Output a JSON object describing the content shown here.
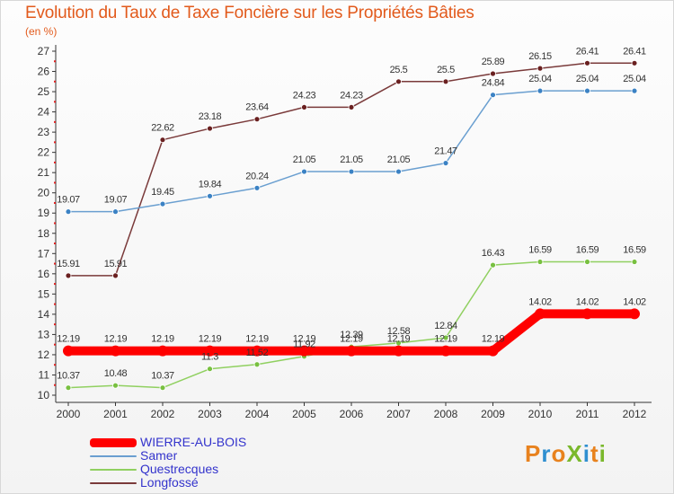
{
  "title": "Evolution du Taux de Taxe Foncière sur les Propriétés Bâties",
  "subtitle": "(en %)",
  "logo_text": "ProXiti",
  "chart_data": {
    "type": "line",
    "x": [
      "2000",
      "2001",
      "2002",
      "2003",
      "2004",
      "2005",
      "2006",
      "2007",
      "2008",
      "2009",
      "2010",
      "2011",
      "2012"
    ],
    "ylim": [
      10,
      27
    ],
    "yticks": [
      "10",
      "11",
      "12",
      "13",
      "14",
      "15",
      "16",
      "17",
      "18",
      "19",
      "20",
      "21",
      "22",
      "23",
      "24",
      "25",
      "26",
      "27"
    ],
    "grid": false,
    "legend": "bottom-left",
    "series": [
      {
        "name": "WIERRE-AU-BOIS",
        "color": "#ff0000",
        "style": "thick",
        "values": [
          12.19,
          12.19,
          12.19,
          12.19,
          12.19,
          12.19,
          12.19,
          12.19,
          12.19,
          12.19,
          14.02,
          14.02,
          14.02
        ],
        "labels": [
          "12.19",
          "12.19",
          "12.19",
          "12.19",
          "12.19",
          "12.19",
          "12.19",
          "12.19",
          "12.19",
          "12.19",
          "14.02",
          "14.02",
          "14.02"
        ]
      },
      {
        "name": "Samer",
        "color": "#6a9fd0",
        "point": "#3b82c4",
        "style": "thin",
        "values": [
          19.07,
          19.07,
          19.45,
          19.84,
          20.24,
          21.05,
          21.05,
          21.05,
          21.47,
          24.84,
          25.04,
          25.04,
          25.04
        ],
        "labels": [
          "19.07",
          "19.07",
          "19.45",
          "19.84",
          "20.24",
          "21.05",
          "21.05",
          "21.05",
          "21.47",
          "24.84",
          "25.04",
          "25.04",
          "25.04"
        ]
      },
      {
        "name": "Questrecques",
        "color": "#90d060",
        "point": "#78c040",
        "style": "thin",
        "values": [
          10.37,
          10.48,
          10.37,
          11.3,
          11.52,
          11.92,
          12.39,
          12.58,
          12.84,
          16.43,
          16.59,
          16.59,
          16.59
        ],
        "labels": [
          "10.37",
          "10.48",
          "10.37",
          "11.3",
          "11.52",
          "11.92",
          "12.39",
          "12.58",
          "12.84",
          "16.43",
          "16.59",
          "16.59",
          "16.59"
        ]
      },
      {
        "name": "Longfossé",
        "color": "#7a3a3a",
        "point": "#6a2020",
        "style": "thin",
        "values": [
          15.91,
          15.91,
          22.62,
          23.18,
          23.64,
          24.23,
          24.23,
          25.5,
          25.5,
          25.89,
          26.15,
          26.41,
          26.41
        ],
        "labels": [
          "15.91",
          "15.91",
          "22.62",
          "23.18",
          "23.64",
          "24.23",
          "24.23",
          "25.5",
          "25.5",
          "25.89",
          "26.15",
          "26.41",
          "26.41"
        ]
      }
    ]
  }
}
